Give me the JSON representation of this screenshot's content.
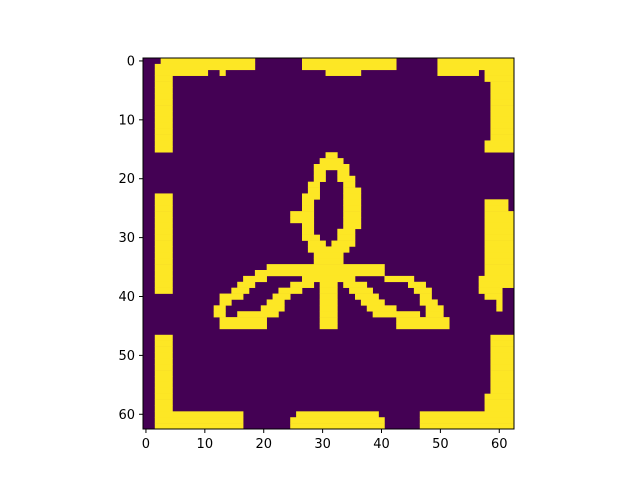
{
  "chart_data": {
    "type": "heatmap",
    "title": "",
    "xlabel": "",
    "ylabel": "",
    "rows": 63,
    "cols": 63,
    "xlim": [
      -0.5,
      62.5
    ],
    "ylim": [
      62.5,
      -0.5
    ],
    "xticks": [
      0,
      10,
      20,
      30,
      40,
      50,
      60
    ],
    "yticks": [
      0,
      10,
      20,
      30,
      40,
      50,
      60
    ],
    "xtick_labels": [
      "0",
      "10",
      "20",
      "30",
      "40",
      "50",
      "60"
    ],
    "ytick_labels": [
      "0",
      "10",
      "20",
      "30",
      "40",
      "50",
      "60"
    ],
    "colormap": "viridis",
    "colors": {
      "background": "#440154",
      "foreground": "#fde725"
    },
    "values_description_note": "",
    "values": [
      "000XXXXXXXXXXXXXXXX00000000XXXXXXXXXXXXXXXX0000000XXXXXXXXXXXXX0",
      "00XXXXXXXXXXXXXXXXX00000000XXXXXXXXXXXXXXXX0000000XXXXXXXXXXXXX0",
      "00XXXXXXXXX00X00000000000000000XXXXXX0000000000000XXXXXXX0XXXXX0",
      "00XXX00000000000000000000000000000000000000000000000000000XXXXX0",
      "00XXX000000000000000000000000000000000000000000000000000000XXXX0",
      "00XXX000000000000000000000000000000000000000000000000000000XXXX0",
      "00XXX000000000000000000000000000000000000000000000000000000XXXX0",
      "00XXX000000000000000000000000000000000000000000000000000000XXXX0",
      "00XXX000000000000000000000000000000000000000000000000000000XXXX0",
      "00XXX000000000000000000000000000000000000000000000000000000XXXX0",
      "00XXX000000000000000000000000000000000000000000000000000000XXXX0",
      "00XXX000000000000000000000000000000000000000000000000000000XXXX0",
      "00XXX000000000000000000000000000000000000000000000000000000XXXX0",
      "00XXX000000000000000000000000000000000000000000000000000000XXXX0",
      "00XXX00000000000000000000000000000000000000000000000000000XXXXX0",
      "00XXX00000000000000000000000000000000000000000000000000000XXXXX0",
      "0000000000000000000000000000000XX0000000000000000000000000000000",
      "000000000000000000000000000000XXXX000000000000000000000000000000",
      "00000000000000000000000000000XXXXXX00000000000000000000000000000",
      "00000000000000000000000000000XX00XX00000000000000000000000000000",
      "00000000000000000000000000000XX00XXX0000000000000000000000000000",
      "0000000000000000000000000000XX0000XX0000000000000000000000000000",
      "0000000000000000000000000000XX0000XXX000000000000000000000000000",
      "00XXX0000000000000000000000XXX0000XXX000000000000000000000000000",
      "00XXX0000000000000000000000XX00000XXX000000000000000000000XXXX00",
      "00XXX0000000000000000000000XX00000XXX000000000000000000000XXXX00",
      "00XXX00000000000000000000XXXX00000XXX000000000000000000000XXXXX0",
      "00XXX00000000000000000000XXXX00000XXX000000000000000000000XXXXX0",
      "00XXX0000000000000000000000XX00000XXX000000000000000000000XXXXXX",
      "00XXX0000000000000000000000XX0000XXX0000000000000000000000XXXXXX",
      "00XXX0000000000000000000000XXX000XXX0000000000000000000000XXXXX0",
      "00XXX00000000000000000000000XXX0XXXX0000000000000000000000XXXXX0",
      "00XXX00000000000000000000000XXXXXXX00000000000000000000000XXXXX0",
      "00XXX000000000000000000000000XXXXX000000000000000000000000XXXXX0",
      "00XXX000000000000000000000000XXXXX000000000000000000000000XXXXX0",
      "00XXX0000000000000000XXXXXXXXXXXXXXXXXXXX00000000000000000XXXXX0",
      "00XXX00000000000000XXXXXXXXXXXXXXXXXXXXXX00000000000000000XXXXX0",
      "00XXX000000000000XXXX000000XXXXXXXXX00000XXXXX00000000000XXXXXXX",
      "00XXX00000000000XXX000000XXXX0XXX0XXXX0000000XXX000000000XXXXXXX",
      "00XXX0000000000XXX00000XXXX000XXX00XXXX0000000XXX00000000XXXX000",
      "0000000000000XXXX00000XXX00000XXX000XXXX0000000XX000000000XXX000",
      "0000000000000XX000000XXX000000XXX0000XXXX000000XXX0000000000X000",
      "000000000000XX000000XXXX000000XXX00000XXXXX00000XXX000000000X000",
      "000000000000XX00XXXXXXX0000000XXX000000XXXXXXXX0XXX0000000000000",
      "0000000000000XXXXXXXX000000000XXX0000000000XXXXXXXXX000000000000",
      "0000000000000XXXXXXXX000000000XXX0000000000XXXXXXXXX000000000000",
      "0000000000000000000000000000000000000000000000000000000000000000",
      "00XXX000000000000000000000000000000000000000000000000000000XXXX0",
      "00XXX000000000000000000000000000000000000000000000000000000XXXX0",
      "00XXX000000000000000000000000000000000000000000000000000000XXXX0",
      "00XXX000000000000000000000000000000000000000000000000000000XXXX0",
      "00XXX000000000000000000000000000000000000000000000000000000XXXX0",
      "00XXX000000000000000000000000000000000000000000000000000000XXXX0",
      "00XXX000000000000000000000000000000000000000000000000000000XXXX0",
      "00XXX000000000000000000000000000000000000000000000000000000XXXXX",
      "00XXX000000000000000000000000000000000000000000000000000000XXXXX",
      "00XXX000000000000000000000000000000000000000000000000000000XXXXX",
      "00XXX00000000000000000000000000000000000000000000000000000XXXXXX",
      "00XXX00000000000000000000000000000000000000000000000000000XXXXXX",
      "00XXX00000000000000000000000000000000000000000000000000000XXXXXX",
      "00XXXXXXXXXXXXXXX000000000XXXXXXXXXXXXXX0000000XXXXXXXXXXXXXXXX0",
      "00XXXXXXXXXXXXXXX00000000XXXXXXXXXXXXXXXX000000XXXXXXXXXXXXXXXX0",
      "00XXXXXXXXXXXXXXX00000000XXXXXXXXXXXXXXXX000000XXXXXXXXXXXXXXXX0"
    ]
  }
}
